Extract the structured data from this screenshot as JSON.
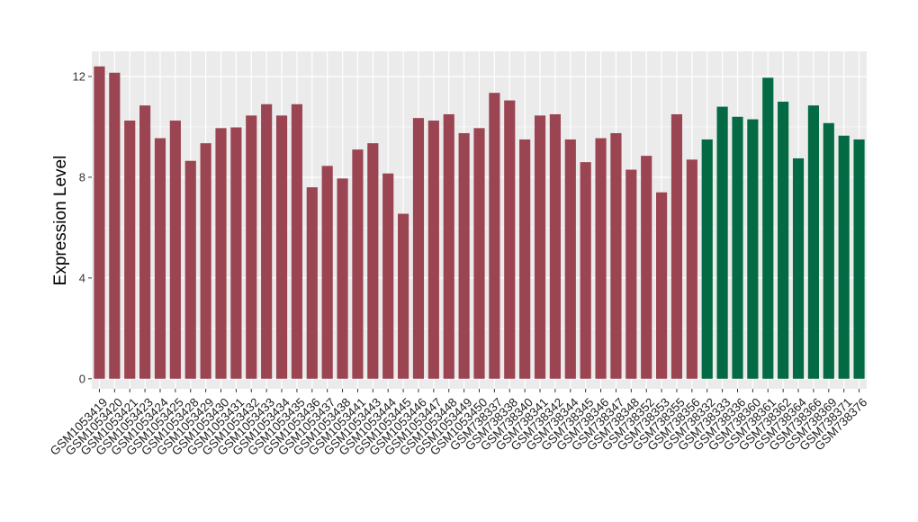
{
  "chart_data": {
    "type": "bar",
    "title": "",
    "xlabel": "",
    "ylabel": "Expression Level",
    "ylim": [
      -0.4,
      13.0
    ],
    "yticks": [
      0,
      4,
      8,
      12
    ],
    "grid": true,
    "legend": "none",
    "colors": {
      "group1": "#9b4452",
      "group2": "#036a44",
      "panel_background": "#ebebeb",
      "grid_line": "#ffffff"
    },
    "categories": [
      "GSM1053419",
      "GSM1053420",
      "GSM1053421",
      "GSM1053423",
      "GSM1053424",
      "GSM1053425",
      "GSM1053428",
      "GSM1053429",
      "GSM1053430",
      "GSM1053431",
      "GSM1053432",
      "GSM1053433",
      "GSM1053434",
      "GSM1053435",
      "GSM1053436",
      "GSM1053437",
      "GSM1053438",
      "GSM1053441",
      "GSM1053443",
      "GSM1053444",
      "GSM1053445",
      "GSM1053446",
      "GSM1053447",
      "GSM1053448",
      "GSM1053449",
      "GSM1053450",
      "GSM738337",
      "GSM738338",
      "GSM738340",
      "GSM738341",
      "GSM738342",
      "GSM738344",
      "GSM738345",
      "GSM738346",
      "GSM738347",
      "GSM738348",
      "GSM738352",
      "GSM738353",
      "GSM738355",
      "GSM738356",
      "GSM738332",
      "GSM738333",
      "GSM738336",
      "GSM738360",
      "GSM738361",
      "GSM738362",
      "GSM738364",
      "GSM738366",
      "GSM738369",
      "GSM738371",
      "GSM738376"
    ],
    "values": [
      12.4,
      12.15,
      10.25,
      10.85,
      9.55,
      10.25,
      8.65,
      9.35,
      9.95,
      9.98,
      10.45,
      10.9,
      10.45,
      10.9,
      7.6,
      8.45,
      7.95,
      9.1,
      9.35,
      8.15,
      6.55,
      10.35,
      10.25,
      10.5,
      9.75,
      9.95,
      11.35,
      11.05,
      9.5,
      10.45,
      10.5,
      9.5,
      8.6,
      9.55,
      9.75,
      8.3,
      8.85,
      7.4,
      10.5,
      8.7,
      9.5,
      10.8,
      10.4,
      10.3,
      11.95,
      11.0,
      8.75,
      10.85,
      10.15,
      9.65,
      9.5
    ],
    "groups": [
      1,
      1,
      1,
      1,
      1,
      1,
      1,
      1,
      1,
      1,
      1,
      1,
      1,
      1,
      1,
      1,
      1,
      1,
      1,
      1,
      1,
      1,
      1,
      1,
      1,
      1,
      1,
      1,
      1,
      1,
      1,
      1,
      1,
      1,
      1,
      1,
      1,
      1,
      1,
      1,
      2,
      2,
      2,
      2,
      2,
      2,
      2,
      2,
      2,
      2,
      2
    ]
  }
}
